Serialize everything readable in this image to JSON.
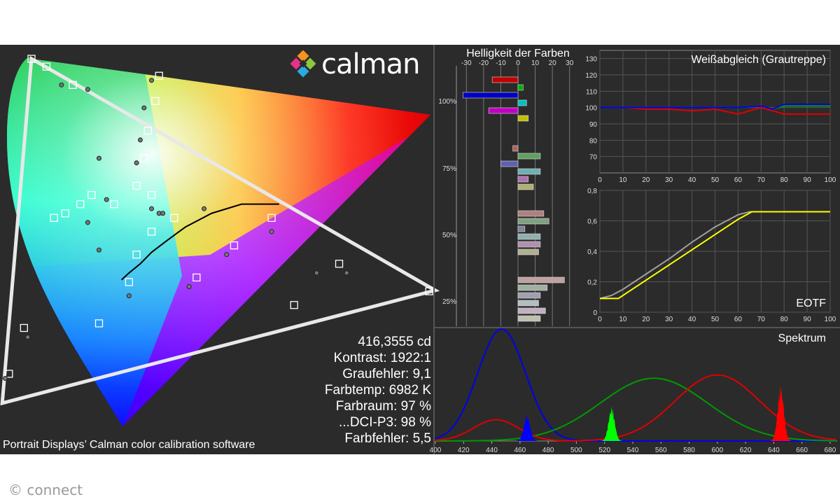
{
  "branding": {
    "logo_text": "calman",
    "caption": "Portrait Displays’ Calman color calibration software",
    "credit": "© connect"
  },
  "stats": [
    "416,3555 cd",
    "Kontrast: 1922:1",
    "Graufehler: 9,1",
    "Farbtemp: 6982 K",
    "Farbraum: 97 %",
    "...DCI-P3: 98 %",
    "Farbfehler: 5,5"
  ],
  "colors": {
    "panel_bg": "#2b2b2b",
    "red": "#e00000",
    "green": "#009a00",
    "blue": "#0000ee",
    "yellow": "#ffff00",
    "gray": "#a0a0a0"
  },
  "chart_data": [
    {
      "type": "scatter",
      "title": "",
      "description_units": "CIE 1931 xy",
      "gamut_triangle": [
        [
          0.708,
          0.292
        ],
        [
          0.17,
          0.797
        ],
        [
          0.131,
          0.046
        ]
      ],
      "target_points": [
        [
          0.17,
          0.797
        ],
        [
          0.19,
          0.78
        ],
        [
          0.225,
          0.74
        ],
        [
          0.34,
          0.76
        ],
        [
          0.335,
          0.705
        ],
        [
          0.325,
          0.64
        ],
        [
          0.32,
          0.58
        ],
        [
          0.31,
          0.52
        ],
        [
          0.7,
          0.29
        ],
        [
          0.58,
          0.35
        ],
        [
          0.49,
          0.45
        ],
        [
          0.44,
          0.39
        ],
        [
          0.39,
          0.32
        ],
        [
          0.3,
          0.31
        ],
        [
          0.36,
          0.45
        ],
        [
          0.33,
          0.5
        ],
        [
          0.33,
          0.42
        ],
        [
          0.28,
          0.48
        ],
        [
          0.25,
          0.5
        ],
        [
          0.235,
          0.48
        ],
        [
          0.215,
          0.46
        ],
        [
          0.2,
          0.45
        ],
        [
          0.31,
          0.37
        ],
        [
          0.14,
          0.11
        ],
        [
          0.16,
          0.21
        ],
        [
          0.26,
          0.22
        ],
        [
          0.52,
          0.26
        ]
      ],
      "measured_points": [
        [
          0.21,
          0.74
        ],
        [
          0.245,
          0.73
        ],
        [
          0.33,
          0.75
        ],
        [
          0.32,
          0.69
        ],
        [
          0.315,
          0.62
        ],
        [
          0.31,
          0.57
        ],
        [
          0.59,
          0.33
        ],
        [
          0.49,
          0.42
        ],
        [
          0.43,
          0.37
        ],
        [
          0.38,
          0.3
        ],
        [
          0.34,
          0.46
        ],
        [
          0.26,
          0.58
        ],
        [
          0.27,
          0.49
        ],
        [
          0.345,
          0.46
        ],
        [
          0.3,
          0.28
        ],
        [
          0.135,
          0.1
        ],
        [
          0.165,
          0.19
        ],
        [
          0.26,
          0.38
        ],
        [
          0.245,
          0.44
        ],
        [
          0.55,
          0.33
        ],
        [
          0.4,
          0.47
        ],
        [
          0.33,
          0.47
        ]
      ],
      "planckian_locus": [
        [
          0.29,
          0.315
        ],
        [
          0.3,
          0.33
        ],
        [
          0.315,
          0.35
        ],
        [
          0.33,
          0.375
        ],
        [
          0.35,
          0.4
        ],
        [
          0.375,
          0.43
        ],
        [
          0.41,
          0.46
        ],
        [
          0.45,
          0.48
        ],
        [
          0.5,
          0.48
        ]
      ]
    },
    {
      "type": "bar",
      "title": "Helligkeit der Farben",
      "xlim": [
        -35,
        35
      ],
      "x_ticks": [
        -30,
        -20,
        -10,
        0,
        10,
        20,
        30
      ],
      "y_tick_labels": [
        "100%",
        "75%",
        "50%",
        "25%"
      ],
      "groups": [
        {
          "label": "100%",
          "bars": [
            {
              "value": -15,
              "color": "#c00000"
            },
            {
              "value": 3,
              "color": "#00b000"
            },
            {
              "value": -32,
              "color": "#0000c0"
            },
            {
              "value": 5,
              "color": "#00c0c0"
            },
            {
              "value": -17,
              "color": "#c000c0"
            },
            {
              "value": 6,
              "color": "#c0c000"
            }
          ]
        },
        {
          "label": "75%",
          "bars": [
            {
              "value": -3,
              "color": "#b06060"
            },
            {
              "value": 13,
              "color": "#60a060"
            },
            {
              "value": -10,
              "color": "#6060b0"
            },
            {
              "value": 13,
              "color": "#70b0b0"
            },
            {
              "value": 6,
              "color": "#b070b0"
            },
            {
              "value": 9,
              "color": "#b0b070"
            }
          ]
        },
        {
          "label": "50%",
          "bars": [
            {
              "value": 15,
              "color": "#b08080"
            },
            {
              "value": 18,
              "color": "#80a080"
            },
            {
              "value": 4,
              "color": "#8080a0"
            },
            {
              "value": 13,
              "color": "#90b0b0"
            },
            {
              "value": 13,
              "color": "#b090b0"
            },
            {
              "value": 12,
              "color": "#b0b090"
            }
          ]
        },
        {
          "label": "25%",
          "bars": [
            {
              "value": 27,
              "color": "#c0a0a0"
            },
            {
              "value": 17,
              "color": "#a0b0a0"
            },
            {
              "value": 13,
              "color": "#a0a0b0"
            },
            {
              "value": 12,
              "color": "#b0c0c0"
            },
            {
              "value": 16,
              "color": "#c0b0c0"
            },
            {
              "value": 13,
              "color": "#c0c0b0"
            }
          ]
        }
      ]
    },
    {
      "type": "line",
      "title": "Weißabgleich (Grautreppe)",
      "xlim": [
        0,
        100
      ],
      "ylim": [
        60,
        135
      ],
      "x_ticks": [
        0,
        10,
        20,
        30,
        40,
        50,
        60,
        70,
        80,
        90,
        100
      ],
      "y_ticks": [
        70,
        80,
        90,
        100,
        110,
        120,
        130
      ],
      "x": [
        0,
        10,
        20,
        30,
        40,
        50,
        60,
        70,
        75,
        80,
        90,
        100
      ],
      "series": [
        {
          "color": "#e00000",
          "values": [
            100,
            100,
            99,
            99,
            98,
            99,
            96,
            100,
            98,
            96,
            96,
            96
          ]
        },
        {
          "color": "#009a00",
          "values": [
            100,
            100,
            100,
            100,
            100,
            100,
            100,
            101,
            99,
            101,
            101,
            101
          ]
        },
        {
          "color": "#0000ee",
          "values": [
            100,
            100,
            100,
            100,
            100,
            100,
            100,
            101,
            99,
            102,
            102,
            102
          ]
        }
      ]
    },
    {
      "type": "line",
      "title": "EOTF",
      "xlim": [
        0,
        100
      ],
      "ylim": [
        0,
        0.8
      ],
      "x_ticks": [
        0,
        10,
        20,
        30,
        40,
        50,
        60,
        70,
        80,
        90,
        100
      ],
      "y_ticks": [
        "0",
        "0,2",
        "0,4",
        "0,6",
        "0,8"
      ],
      "y_tick_values": [
        0,
        0.2,
        0.4,
        0.6,
        0.8
      ],
      "series": [
        {
          "color": "#a0a0a0",
          "x": [
            0,
            5,
            10,
            20,
            30,
            40,
            50,
            60,
            65,
            70,
            80,
            90,
            100
          ],
          "values": [
            0.09,
            0.11,
            0.15,
            0.25,
            0.35,
            0.46,
            0.56,
            0.64,
            0.66,
            0.66,
            0.66,
            0.66,
            0.66
          ]
        },
        {
          "color": "#ffff00",
          "x": [
            0,
            5,
            8,
            10,
            20,
            30,
            40,
            50,
            60,
            66,
            70,
            80,
            90,
            100
          ],
          "values": [
            0.09,
            0.09,
            0.09,
            0.11,
            0.21,
            0.31,
            0.41,
            0.51,
            0.61,
            0.66,
            0.66,
            0.66,
            0.66,
            0.66
          ]
        }
      ]
    },
    {
      "type": "line",
      "title": "Spektrum",
      "xlim": [
        400,
        685
      ],
      "x_ticks": [
        400,
        420,
        440,
        460,
        480,
        500,
        520,
        540,
        560,
        580,
        600,
        620,
        640,
        660,
        680
      ],
      "series": [
        {
          "color": "#0000ee",
          "peak_nm": 447,
          "width_nm": 17,
          "height": 1.0
        },
        {
          "color": "#009a00",
          "peak_nm": 555,
          "width_nm": 38,
          "height": 0.56
        },
        {
          "color": "#e00000",
          "peak_nm": 600,
          "width_nm": 30,
          "height": 0.59,
          "secondary_peak_nm": 443,
          "secondary_width_nm": 16,
          "secondary_height": 0.19
        },
        {
          "color": "#0000ff",
          "spike_nm": 465,
          "height": 0.25
        },
        {
          "color": "#00ff00",
          "spike_nm": 525,
          "height": 0.32
        },
        {
          "color": "#ff0000",
          "spike_nm": 645,
          "height": 0.52
        }
      ]
    }
  ]
}
